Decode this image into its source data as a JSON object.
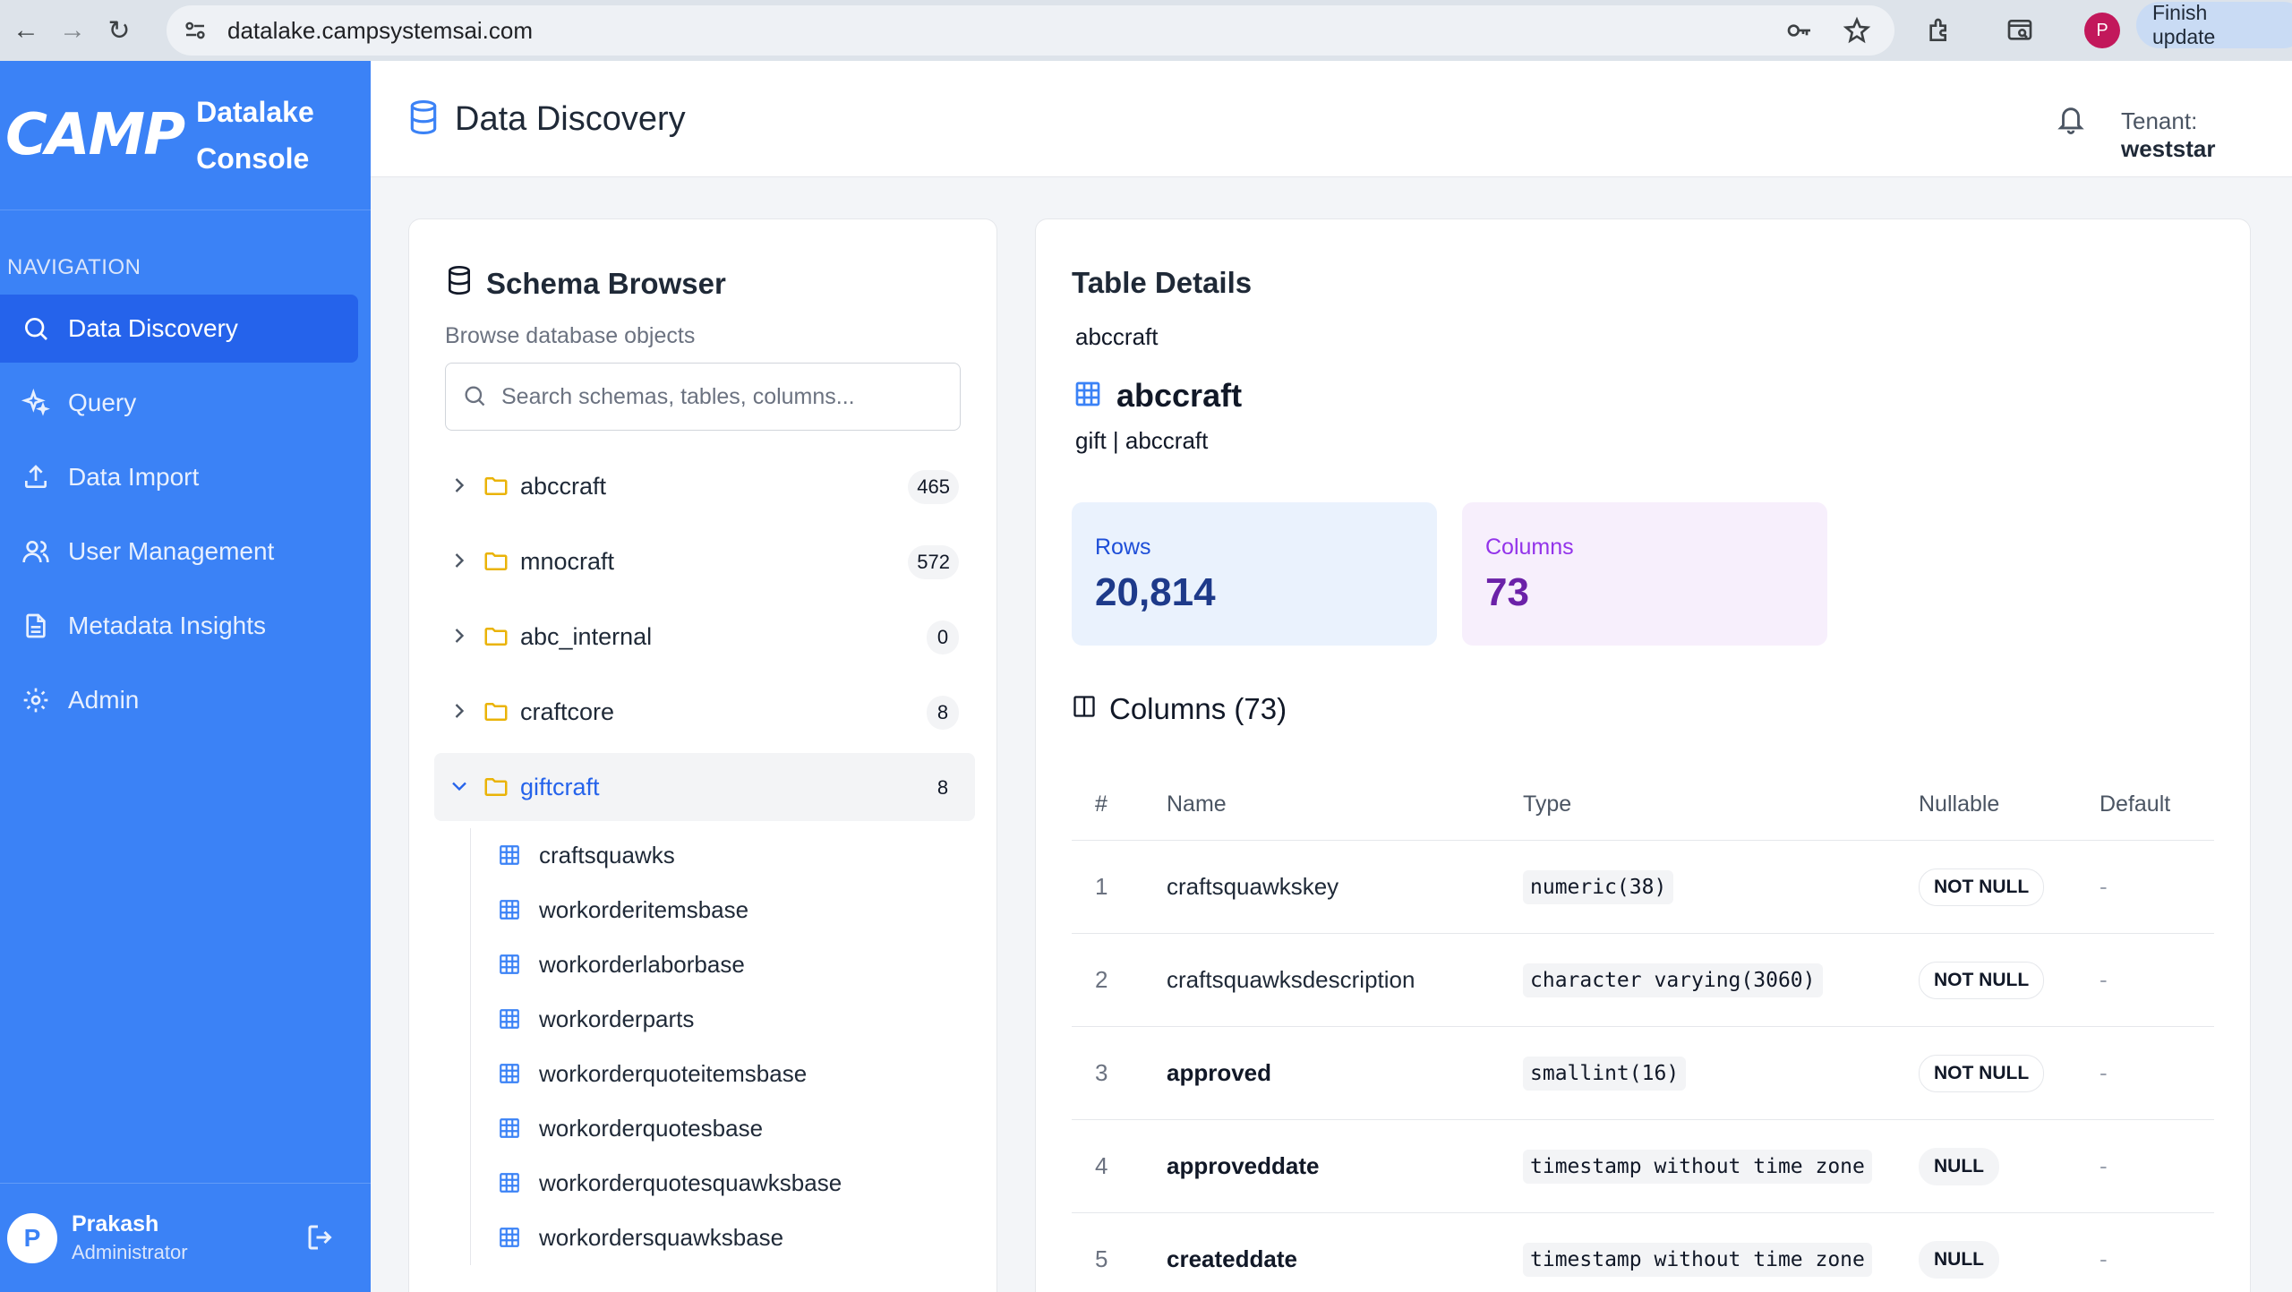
{
  "browser": {
    "url": "datalake.campsystemsai.com",
    "profile_initial": "P",
    "update_label": "Finish update"
  },
  "sidebar": {
    "logo": "CAMP",
    "brand_line1": "Datalake",
    "brand_line2": "Console",
    "nav_heading": "NAVIGATION",
    "items": [
      {
        "label": "Data Discovery",
        "icon": "search-icon",
        "active": true
      },
      {
        "label": "Query",
        "icon": "sparkles-icon"
      },
      {
        "label": "Data Import",
        "icon": "upload-icon"
      },
      {
        "label": "User Management",
        "icon": "users-icon"
      },
      {
        "label": "Metadata Insights",
        "icon": "document-icon"
      },
      {
        "label": "Admin",
        "icon": "gear-icon"
      }
    ],
    "user": {
      "initial": "P",
      "name": "Prakash",
      "role": "Administrator"
    }
  },
  "header": {
    "title": "Data Discovery",
    "tenant_label": "Tenant:",
    "tenant_value": "weststar"
  },
  "schema_browser": {
    "title": "Schema Browser",
    "subtitle": "Browse database objects",
    "search_placeholder": "Search schemas, tables, columns...",
    "schemas": [
      {
        "name": "abccraft",
        "count": "465"
      },
      {
        "name": "mnocraft",
        "count": "572"
      },
      {
        "name": "abc_internal",
        "count": "0"
      },
      {
        "name": "craftcore",
        "count": "8"
      },
      {
        "name": "giftcraft",
        "count": "8",
        "expanded": true
      }
    ],
    "expanded_tables": [
      "craftsquawks",
      "workorderitemsbase",
      "workorderlaborbase",
      "workorderparts",
      "workorderquoteitemsbase",
      "workorderquotesbase",
      "workorderquotesquawksbase",
      "workordersquawksbase"
    ]
  },
  "table_details": {
    "title": "Table Details",
    "subtitle": "abccraft",
    "table_name": "abccraft",
    "path": "gift | abccraft",
    "rows_label": "Rows",
    "rows_value": "20,814",
    "columns_label": "Columns",
    "columns_value": "73",
    "columns_heading": "Columns (73)",
    "headers": {
      "num": "#",
      "name": "Name",
      "type": "Type",
      "nullable": "Nullable",
      "default": "Default"
    },
    "columns": [
      {
        "num": "1",
        "name": "craftsquawkskey",
        "type": "numeric(38)",
        "nullable": "NOT NULL",
        "default": "-"
      },
      {
        "num": "2",
        "name": "craftsquawksdescription",
        "type": "character varying(3060)",
        "nullable": "NOT NULL",
        "default": "-"
      },
      {
        "num": "3",
        "name": "approved",
        "type": "smallint(16)",
        "nullable": "NOT NULL",
        "default": "-"
      },
      {
        "num": "4",
        "name": "approveddate",
        "type": "timestamp without time zone",
        "nullable": "NULL",
        "default": "-"
      },
      {
        "num": "5",
        "name": "createddate",
        "type": "timestamp without time zone",
        "nullable": "NULL",
        "default": "-"
      }
    ]
  },
  "colors": {
    "sidebar": "#3b82f6",
    "sidebar_active": "#2563eb",
    "accent": "#2563eb",
    "folder": "#eab308",
    "table_icon": "#3b82f6"
  }
}
